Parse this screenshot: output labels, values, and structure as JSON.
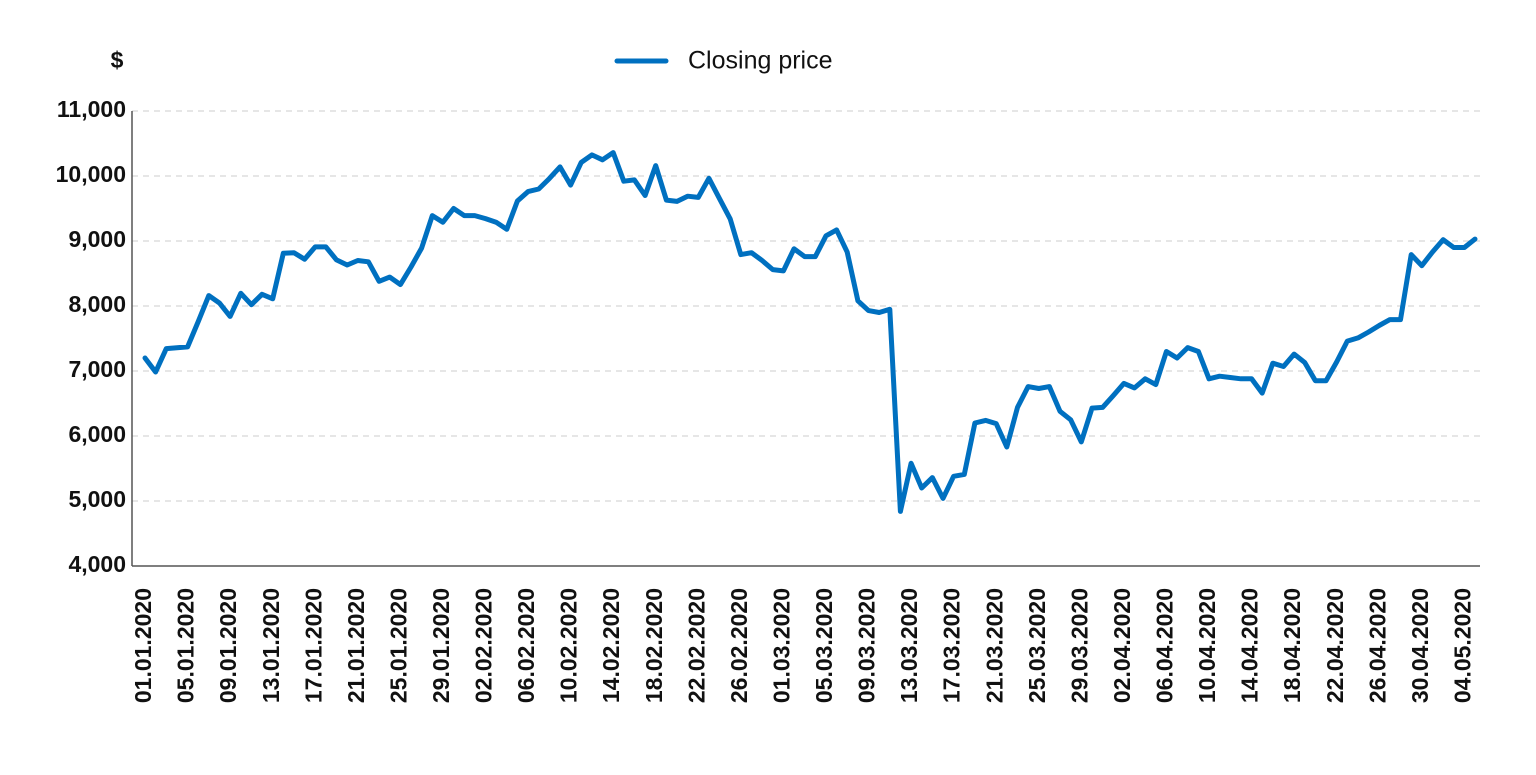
{
  "chart_data": {
    "type": "line",
    "y_label": "$",
    "categories": [
      "01.01.2020",
      null,
      null,
      null,
      "05.01.2020",
      null,
      null,
      null,
      "09.01.2020",
      null,
      null,
      null,
      "13.01.2020",
      null,
      null,
      null,
      "17.01.2020",
      null,
      null,
      null,
      "21.01.2020",
      null,
      null,
      null,
      "25.01.2020",
      null,
      null,
      null,
      "29.01.2020",
      null,
      null,
      null,
      "02.02.2020",
      null,
      null,
      null,
      "06.02.2020",
      null,
      null,
      null,
      "10.02.2020",
      null,
      null,
      null,
      "14.02.2020",
      null,
      null,
      null,
      "18.02.2020",
      null,
      null,
      null,
      "22.02.2020",
      null,
      null,
      null,
      "26.02.2020",
      null,
      null,
      null,
      "01.03.2020",
      null,
      null,
      null,
      "05.03.2020",
      null,
      null,
      null,
      "09.03.2020",
      null,
      null,
      null,
      "13.03.2020",
      null,
      null,
      null,
      "17.03.2020",
      null,
      null,
      null,
      "21.03.2020",
      null,
      null,
      null,
      "25.03.2020",
      null,
      null,
      null,
      "29.03.2020",
      null,
      null,
      null,
      "02.04.2020",
      null,
      null,
      null,
      "06.04.2020",
      null,
      null,
      null,
      "10.04.2020",
      null,
      null,
      null,
      "14.04.2020",
      null,
      null,
      null,
      "18.04.2020",
      null,
      null,
      null,
      "22.04.2020",
      null,
      null,
      null,
      "26.04.2020",
      null,
      null,
      null,
      "30.04.2020",
      null,
      null,
      null,
      "04.05.2020",
      null
    ],
    "series": [
      {
        "name": "Closing price",
        "color": "#0070c0",
        "values": [
          7200,
          6985,
          7345,
          7358,
          7370,
          7760,
          8160,
          8045,
          7840,
          8195,
          8020,
          8180,
          8110,
          8810,
          8820,
          8720,
          8910,
          8910,
          8710,
          8630,
          8700,
          8680,
          8380,
          8445,
          8330,
          8600,
          8890,
          9390,
          9290,
          9500,
          9390,
          9390,
          9345,
          9290,
          9180,
          9615,
          9760,
          9800,
          9960,
          10140,
          9860,
          10210,
          10325,
          10250,
          10360,
          9920,
          9940,
          9700,
          10160,
          9630,
          9610,
          9690,
          9670,
          9965,
          9650,
          9340,
          8790,
          8820,
          8700,
          8560,
          8540,
          8880,
          8760,
          8760,
          9080,
          9170,
          8830,
          8080,
          7930,
          7900,
          7950,
          4840,
          5580,
          5200,
          5360,
          5040,
          5380,
          5410,
          6200,
          6240,
          6190,
          5830,
          6440,
          6760,
          6730,
          6760,
          6380,
          6250,
          5910,
          6430,
          6440,
          6620,
          6810,
          6740,
          6880,
          6790,
          7300,
          7200,
          7360,
          7300,
          6880,
          6920,
          6900,
          6880,
          6880,
          6660,
          7120,
          7070,
          7260,
          7130,
          6850,
          6850,
          7140,
          7460,
          7510,
          7600,
          7700,
          7790,
          7790,
          8790,
          8620,
          8830,
          9020,
          8900,
          8900,
          9030
        ]
      }
    ],
    "ylim": [
      4000,
      11000
    ],
    "yticks": [
      {
        "value": 4000,
        "label": "4,000"
      },
      {
        "value": 5000,
        "label": "5,000"
      },
      {
        "value": 6000,
        "label": "6,000"
      },
      {
        "value": 7000,
        "label": "7,000"
      },
      {
        "value": 8000,
        "label": "8,000"
      },
      {
        "value": 9000,
        "label": "9,000"
      },
      {
        "value": 10000,
        "label": "10,000"
      },
      {
        "value": 11000,
        "label": "11,000"
      }
    ],
    "grid": true,
    "legend": "top"
  }
}
